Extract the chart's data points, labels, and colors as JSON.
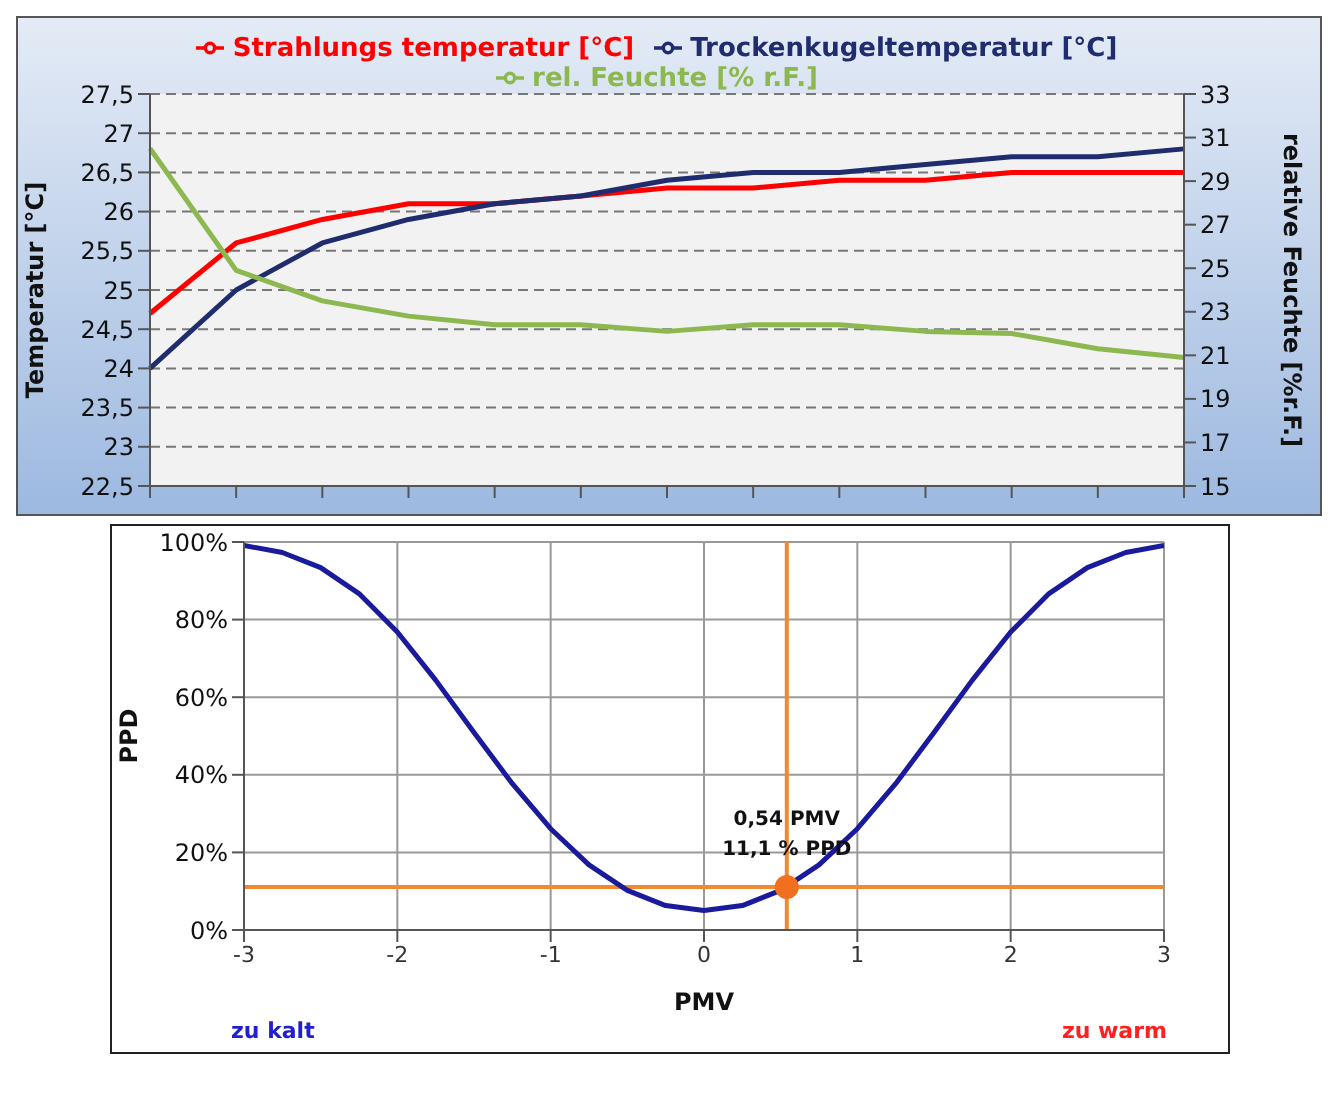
{
  "chart_data": [
    {
      "type": "line",
      "categories": [
        null,
        null,
        null,
        null,
        null,
        null,
        null,
        null,
        null,
        null,
        null,
        null,
        null
      ],
      "series": [
        {
          "name": "Strahlungs temperatur [°C]",
          "color": "#ff0000",
          "values": [
            24.7,
            25.6,
            25.9,
            26.1,
            26.1,
            26.2,
            26.3,
            26.3,
            26.4,
            26.4,
            26.5,
            26.5,
            26.5
          ]
        },
        {
          "name": "Trockenkugeltemperatur [°C]",
          "color": "#1f2d6e",
          "values": [
            24.0,
            25.0,
            25.6,
            25.9,
            26.1,
            26.2,
            26.4,
            26.5,
            26.5,
            26.6,
            26.7,
            26.7,
            26.8
          ]
        },
        {
          "name": "rel. Feuchte [% r.F.]",
          "color": "#8db850",
          "axis": "y2",
          "values": [
            30.5,
            24.9,
            23.5,
            22.8,
            22.4,
            22.4,
            22.1,
            22.4,
            22.4,
            22.1,
            22.0,
            21.3,
            20.9
          ]
        }
      ],
      "ylabel": "Temperatur [°C]",
      "y2label": "relative Feuchte [%r.F.]",
      "ylim": [
        22.5,
        27.5
      ],
      "yticks": [
        {
          "value": 22.5,
          "label": "22,5"
        },
        23,
        {
          "value": 23.5,
          "label": "23,5"
        },
        24,
        {
          "value": 24.5,
          "label": "24,5"
        },
        25,
        {
          "value": 25.5,
          "label": "25,5"
        },
        26,
        {
          "value": 26.5,
          "label": "26,5"
        },
        27,
        {
          "value": 27.5,
          "label": "27,5"
        }
      ],
      "y2lim": [
        15,
        33
      ],
      "y2ticks": [
        15,
        17,
        19,
        21,
        23,
        25,
        27,
        29,
        31,
        33
      ],
      "grid": "y",
      "legend": "top"
    },
    {
      "type": "line",
      "series": [
        {
          "color": "#1a1a9c",
          "x": [
            -3,
            -2.75,
            -2.5,
            -2.25,
            -2,
            -1.75,
            -1.5,
            -1.25,
            -1,
            -0.75,
            -0.5,
            -0.25,
            0,
            0.25,
            0.5,
            0.75,
            1,
            1.25,
            1.5,
            1.75,
            2,
            2.25,
            2.5,
            2.75,
            3
          ],
          "values": [
            99.1,
            97.3,
            93.4,
            86.7,
            76.8,
            64.4,
            50.9,
            37.7,
            26.1,
            16.8,
            10.2,
            6.3,
            5,
            6.3,
            10.2,
            16.8,
            26.1,
            37.7,
            50.9,
            64.4,
            76.8,
            86.7,
            93.4,
            97.3,
            99.1
          ]
        },
        {
          "type": "scatter",
          "color": "#f07020",
          "x": [
            0.54
          ],
          "values": [
            11.1
          ]
        }
      ],
      "xlabel": "PMV",
      "ylabel": "PPD",
      "xlim": [
        -3,
        3
      ],
      "xticks": [
        -3,
        -2,
        -1,
        0,
        1,
        2,
        3
      ],
      "ylim": [
        0,
        100
      ],
      "yticks": [
        {
          "value": 0,
          "label": "0%"
        },
        {
          "value": 20,
          "label": "20%"
        },
        {
          "value": 40,
          "label": "40%"
        },
        {
          "value": 60,
          "label": "60%"
        },
        {
          "value": 80,
          "label": "80%"
        },
        {
          "value": 100,
          "label": "100%"
        }
      ],
      "grid": true,
      "ref_lines": [
        {
          "axis": "x",
          "value": 0.54,
          "color": "#f08a30"
        },
        {
          "axis": "y",
          "value": 11.1,
          "color": "#f08a30"
        }
      ],
      "annotations": [
        {
          "text": "0,54 PMV",
          "x": 0.54,
          "y": 11.1
        },
        {
          "text": "11,1 % PPD",
          "x": 0.54,
          "y": 11.1
        },
        "zu kalt",
        "zu warm"
      ]
    }
  ]
}
